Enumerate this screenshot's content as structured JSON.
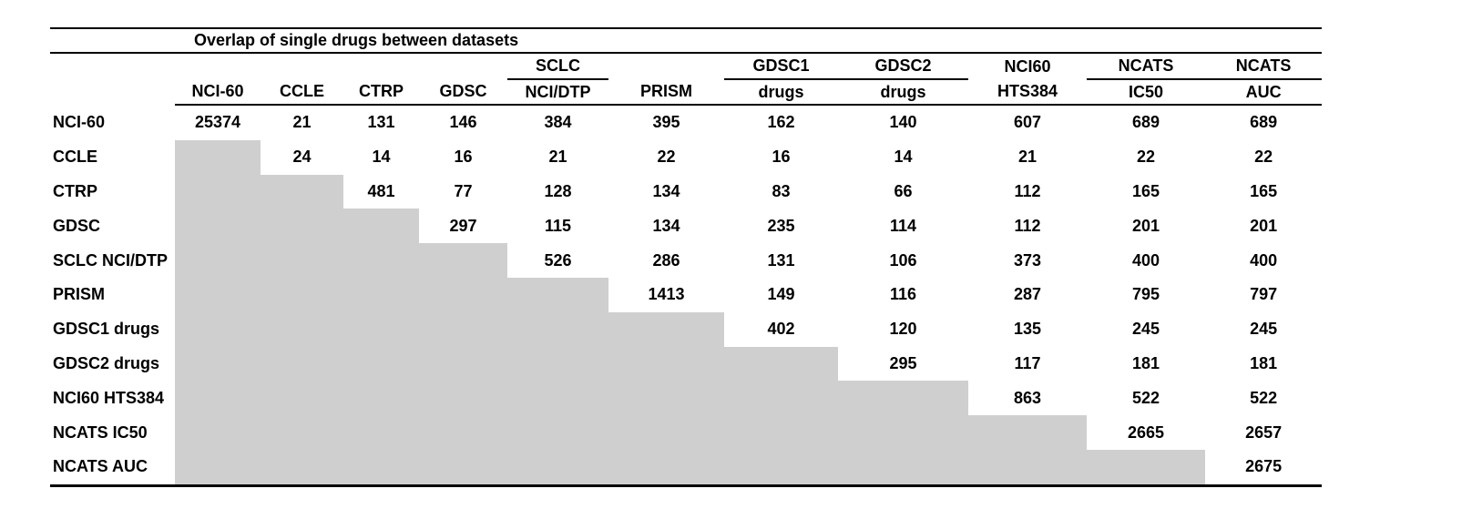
{
  "table": {
    "title": "Overlap of single drugs between datasets",
    "header": {
      "group_row": [
        "",
        "",
        "",
        "",
        "SCLC",
        "",
        "GDSC1",
        "GDSC2",
        "NCI60",
        "NCATS",
        "NCATS"
      ],
      "column_row": [
        "NCI-60",
        "CCLE",
        "CTRP",
        "GDSC",
        "NCI/DTP",
        "PRISM",
        "drugs",
        "drugs",
        "HTS384",
        "IC50",
        "AUC"
      ]
    },
    "rows": [
      {
        "label": "NCI-60",
        "values": [
          25374,
          21,
          131,
          146,
          384,
          395,
          162,
          140,
          607,
          689,
          689
        ]
      },
      {
        "label": "CCLE",
        "values": [
          null,
          24,
          14,
          16,
          21,
          22,
          16,
          14,
          21,
          22,
          22
        ]
      },
      {
        "label": "CTRP",
        "values": [
          null,
          null,
          481,
          77,
          128,
          134,
          83,
          66,
          112,
          165,
          165
        ]
      },
      {
        "label": "GDSC",
        "values": [
          null,
          null,
          null,
          297,
          115,
          134,
          235,
          114,
          112,
          201,
          201
        ]
      },
      {
        "label": "SCLC NCI/DTP",
        "values": [
          null,
          null,
          null,
          null,
          526,
          286,
          131,
          106,
          373,
          400,
          400
        ]
      },
      {
        "label": "PRISM",
        "values": [
          null,
          null,
          null,
          null,
          null,
          1413,
          149,
          116,
          287,
          795,
          797
        ]
      },
      {
        "label": "GDSC1 drugs",
        "values": [
          null,
          null,
          null,
          null,
          null,
          null,
          402,
          120,
          135,
          245,
          245
        ]
      },
      {
        "label": "GDSC2 drugs",
        "values": [
          null,
          null,
          null,
          null,
          null,
          null,
          null,
          295,
          117,
          181,
          181
        ]
      },
      {
        "label": "NCI60 HTS384",
        "values": [
          null,
          null,
          null,
          null,
          null,
          null,
          null,
          null,
          863,
          522,
          522
        ]
      },
      {
        "label": "NCATS IC50",
        "values": [
          null,
          null,
          null,
          null,
          null,
          null,
          null,
          null,
          null,
          2665,
          2657
        ]
      },
      {
        "label": "NCATS AUC",
        "values": [
          null,
          null,
          null,
          null,
          null,
          null,
          null,
          null,
          null,
          null,
          2675
        ]
      }
    ]
  },
  "colors": {
    "shaded_cell": "#cfcfcf",
    "text": "#000000",
    "background": "#ffffff",
    "rule": "#000000"
  }
}
